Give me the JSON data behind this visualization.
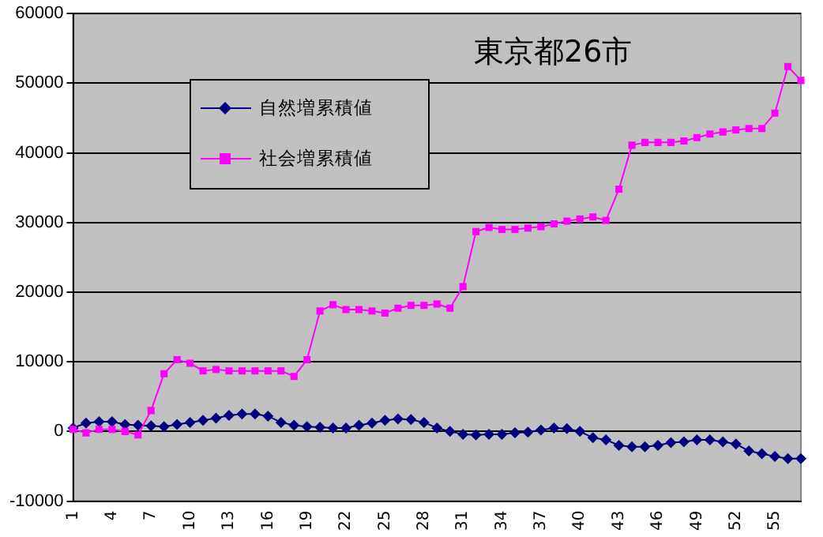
{
  "chart_data": {
    "type": "line",
    "title": "東京都26市",
    "categories": [
      "1",
      null,
      null,
      "4",
      null,
      null,
      "7",
      null,
      null,
      "10",
      null,
      null,
      "13",
      null,
      null,
      "16",
      null,
      null,
      "19",
      null,
      null,
      "22",
      null,
      null,
      "25",
      null,
      null,
      "28",
      null,
      null,
      "31",
      null,
      null,
      "34",
      null,
      null,
      "37",
      null,
      null,
      "40",
      null,
      null,
      "43",
      null,
      null,
      "46",
      null,
      null,
      "49",
      null,
      null,
      "52",
      null,
      null,
      "55",
      null,
      null
    ],
    "series": [
      {
        "name": "自然増累積値",
        "color": "#000080",
        "marker": "diamond",
        "values": [
          500,
          1200,
          1400,
          1400,
          1000,
          900,
          800,
          700,
          1000,
          1300,
          1600,
          1900,
          2300,
          2500,
          2500,
          2200,
          1300,
          900,
          700,
          600,
          500,
          500,
          900,
          1200,
          1600,
          1800,
          1700,
          1300,
          500,
          0,
          -400,
          -500,
          -400,
          -400,
          -200,
          -100,
          200,
          500,
          400,
          0,
          -900,
          -1200,
          -2000,
          -2200,
          -2200,
          -2000,
          -1600,
          -1500,
          -1200,
          -1200,
          -1500,
          -1800,
          -2800,
          -3200,
          -3600,
          -3900,
          -3900
        ]
      },
      {
        "name": "社会増累積値",
        "color": "#ff00ff",
        "marker": "square",
        "values": [
          300,
          -200,
          300,
          300,
          0,
          -500,
          3000,
          8300,
          10300,
          9800,
          8700,
          8900,
          8700,
          8700,
          8700,
          8700,
          8700,
          7900,
          10300,
          17300,
          18200,
          17500,
          17500,
          17300,
          17000,
          17700,
          18100,
          18100,
          18300,
          17700,
          20800,
          28700,
          29300,
          29000,
          29000,
          29200,
          29400,
          29800,
          30200,
          30500,
          30800,
          30300,
          34800,
          41100,
          41500,
          41500,
          41500,
          41700,
          42200,
          42700,
          43000,
          43300,
          43500,
          43500,
          45700,
          52400,
          50400
        ]
      }
    ],
    "ylim": [
      -10000,
      60000
    ],
    "yticks": [
      -10000,
      0,
      10000,
      20000,
      30000,
      40000,
      50000,
      60000
    ],
    "grid": "y",
    "legend": "top left",
    "line_style": "solid"
  }
}
